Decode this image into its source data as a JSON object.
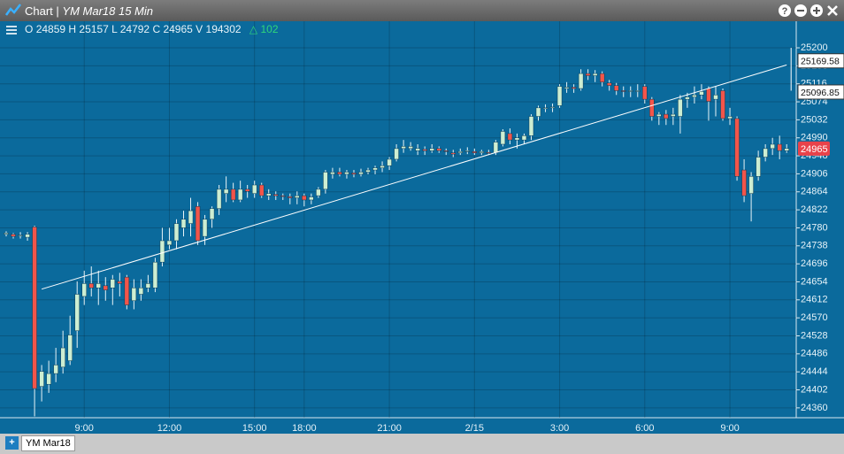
{
  "window": {
    "title": "Chart",
    "subtitle": "YM Mar18 15 Min",
    "tab": "YM Mar18"
  },
  "quote": {
    "items": [
      {
        "label": "O",
        "value": 24859
      },
      {
        "label": "H",
        "value": 25157
      },
      {
        "label": "L",
        "value": 24792
      },
      {
        "label": "C",
        "value": 24965
      },
      {
        "label": "V",
        "value": 194302
      }
    ],
    "change": 102
  },
  "chart_data": {
    "type": "candlestick",
    "up_color": "#cdeed2",
    "down_color": "#f2554a",
    "wick_color": "#e8f4f8",
    "grid": true,
    "ylim": [
      24337,
      25262
    ],
    "yticks": [
      24360,
      24402,
      24444,
      24486,
      24528,
      24570,
      24612,
      24654,
      24696,
      24738,
      24780,
      24822,
      24864,
      24906,
      24948,
      24990,
      25032,
      25074,
      25116,
      25158,
      25200
    ],
    "categories": [
      null,
      null,
      null,
      null,
      null,
      null,
      null,
      null,
      null,
      null,
      null,
      "9:00",
      null,
      null,
      null,
      null,
      null,
      null,
      null,
      null,
      null,
      null,
      null,
      "12:00",
      null,
      null,
      null,
      null,
      null,
      null,
      null,
      null,
      null,
      null,
      null,
      "15:00",
      null,
      null,
      null,
      null,
      null,
      null,
      "18:00",
      null,
      null,
      null,
      null,
      null,
      null,
      null,
      null,
      null,
      null,
      null,
      "21:00",
      null,
      null,
      null,
      null,
      null,
      null,
      null,
      null,
      null,
      null,
      null,
      "2/15",
      null,
      null,
      null,
      null,
      null,
      null,
      null,
      null,
      null,
      null,
      null,
      "3:00",
      null,
      null,
      null,
      null,
      null,
      null,
      null,
      null,
      null,
      null,
      null,
      "6:00",
      null,
      null,
      null,
      null,
      null,
      null,
      null,
      null,
      null,
      null,
      null,
      "9:00",
      null,
      null,
      null,
      null,
      null,
      null,
      null,
      null
    ],
    "candles": [
      [
        24765,
        24772,
        24760,
        24768
      ],
      [
        24765,
        24768,
        24755,
        24760
      ],
      [
        24762,
        24770,
        24755,
        24763
      ],
      [
        24758,
        24770,
        24750,
        24765
      ],
      [
        24782,
        24785,
        24340,
        24405
      ],
      [
        24410,
        24460,
        24375,
        24445
      ],
      [
        24415,
        24470,
        24395,
        24440
      ],
      [
        24440,
        24500,
        24420,
        24460
      ],
      [
        24455,
        24540,
        24440,
        24500
      ],
      [
        24470,
        24575,
        24460,
        24530
      ],
      [
        24540,
        24655,
        24500,
        24625
      ],
      [
        24620,
        24680,
        24600,
        24650
      ],
      [
        24650,
        24690,
        24620,
        24640
      ],
      [
        24640,
        24680,
        24600,
        24650
      ],
      [
        24645,
        24665,
        24610,
        24635
      ],
      [
        24640,
        24670,
        24600,
        24660
      ],
      [
        24655,
        24675,
        24620,
        24650
      ],
      [
        24665,
        24670,
        24590,
        24600
      ],
      [
        24610,
        24660,
        24590,
        24640
      ],
      [
        24625,
        24660,
        24610,
        24640
      ],
      [
        24640,
        24670,
        24630,
        24650
      ],
      [
        24640,
        24710,
        24630,
        24700
      ],
      [
        24700,
        24780,
        24690,
        24750
      ],
      [
        24740,
        24780,
        24730,
        24750
      ],
      [
        24750,
        24800,
        24730,
        24790
      ],
      [
        24780,
        24820,
        24760,
        24800
      ],
      [
        24790,
        24850,
        24760,
        24820
      ],
      [
        24830,
        24840,
        24740,
        24750
      ],
      [
        24760,
        24810,
        24740,
        24800
      ],
      [
        24800,
        24830,
        24780,
        24825
      ],
      [
        24825,
        24880,
        24810,
        24870
      ],
      [
        24860,
        24900,
        24840,
        24870
      ],
      [
        24870,
        24885,
        24840,
        24845
      ],
      [
        24845,
        24890,
        24840,
        24870
      ],
      [
        24870,
        24880,
        24850,
        24865
      ],
      [
        24860,
        24890,
        24850,
        24880
      ],
      [
        24880,
        24885,
        24850,
        24855
      ],
      [
        24855,
        24870,
        24845,
        24860
      ],
      [
        24858,
        24865,
        24845,
        24855
      ],
      [
        24855,
        24860,
        24845,
        24853
      ],
      [
        24853,
        24860,
        24835,
        24850
      ],
      [
        24850,
        24865,
        24835,
        24855
      ],
      [
        24855,
        24860,
        24830,
        24845
      ],
      [
        24845,
        24860,
        24835,
        24852
      ],
      [
        24855,
        24875,
        24850,
        24870
      ],
      [
        24870,
        24915,
        24860,
        24910
      ],
      [
        24905,
        24920,
        24895,
        24910
      ],
      [
        24910,
        24920,
        24900,
        24905
      ],
      [
        24905,
        24915,
        24895,
        24910
      ],
      [
        24908,
        24915,
        24898,
        24905
      ],
      [
        24905,
        24918,
        24900,
        24910
      ],
      [
        24910,
        24920,
        24905,
        24915
      ],
      [
        24915,
        24925,
        24905,
        24920
      ],
      [
        24920,
        24935,
        24910,
        24925
      ],
      [
        24925,
        24945,
        24915,
        24940
      ],
      [
        24940,
        24975,
        24935,
        24965
      ],
      [
        24965,
        24985,
        24955,
        24970
      ],
      [
        24965,
        24980,
        24960,
        24970
      ],
      [
        24960,
        24975,
        24950,
        24965
      ],
      [
        24963,
        24970,
        24950,
        24960
      ],
      [
        24960,
        24975,
        24955,
        24965
      ],
      [
        24965,
        24970,
        24955,
        24960
      ],
      [
        24960,
        24965,
        24950,
        24958
      ],
      [
        24955,
        24962,
        24945,
        24952
      ],
      [
        24955,
        24965,
        24950,
        24958
      ],
      [
        24958,
        24968,
        24952,
        24960
      ],
      [
        24958,
        24965,
        24950,
        24955
      ],
      [
        24955,
        24962,
        24950,
        24958
      ],
      [
        24956,
        24962,
        24950,
        24955
      ],
      [
        24955,
        24985,
        24950,
        24980
      ],
      [
        24975,
        25010,
        24970,
        25005
      ],
      [
        25000,
        25012,
        24975,
        24985
      ],
      [
        24985,
        25000,
        24965,
        24990
      ],
      [
        24985,
        25000,
        24975,
        24995
      ],
      [
        24995,
        25045,
        24985,
        25040
      ],
      [
        25040,
        25065,
        25030,
        25060
      ],
      [
        25058,
        25068,
        25050,
        25060
      ],
      [
        25060,
        25070,
        25050,
        25062
      ],
      [
        25065,
        25115,
        25060,
        25110
      ],
      [
        25105,
        25120,
        25095,
        25108
      ],
      [
        25108,
        25115,
        25095,
        25105
      ],
      [
        25105,
        25150,
        25100,
        25140
      ],
      [
        25140,
        25150,
        25125,
        25135
      ],
      [
        25135,
        25148,
        25120,
        25140
      ],
      [
        25140,
        25145,
        25110,
        25120
      ],
      [
        25118,
        25125,
        25100,
        25112
      ],
      [
        25112,
        25118,
        25090,
        25100
      ],
      [
        25100,
        25110,
        25085,
        25098
      ],
      [
        25098,
        25110,
        25085,
        25100
      ],
      [
        25100,
        25115,
        25085,
        25100
      ],
      [
        25110,
        25115,
        25070,
        25080
      ],
      [
        25080,
        25085,
        25030,
        25040
      ],
      [
        25040,
        25050,
        25020,
        25045
      ],
      [
        25045,
        25055,
        25020,
        25035
      ],
      [
        25040,
        25060,
        25020,
        25045
      ],
      [
        25040,
        25090,
        25000,
        25080
      ],
      [
        25080,
        25095,
        25060,
        25085
      ],
      [
        25085,
        25110,
        25070,
        25090
      ],
      [
        25090,
        25115,
        25080,
        25098
      ],
      [
        25105,
        25110,
        25030,
        25075
      ],
      [
        25080,
        25110,
        25040,
        25090
      ],
      [
        25100,
        25105,
        25030,
        25035
      ],
      [
        25035,
        25060,
        25020,
        25040
      ],
      [
        25035,
        25040,
        24890,
        24900
      ],
      [
        24915,
        24940,
        24840,
        24855
      ],
      [
        24860,
        24910,
        24795,
        24900
      ],
      [
        24900,
        24960,
        24890,
        24945
      ],
      [
        24945,
        24975,
        24935,
        24965
      ],
      [
        24965,
        24990,
        24950,
        24975
      ],
      [
        24975,
        24995,
        24940,
        24960
      ],
      [
        24960,
        24975,
        24955,
        24965
      ]
    ],
    "trendline": {
      "x": [
        5,
        110
      ],
      "values": [
        24637,
        25160
      ]
    },
    "measure": {
      "x": 110,
      "values": [
        25200,
        25100
      ]
    },
    "price_labels": [
      {
        "value": 25169.58,
        "label": "25169.58"
      },
      {
        "value": 25096.85,
        "label": "25096.85"
      }
    ],
    "last_price": 24965
  }
}
